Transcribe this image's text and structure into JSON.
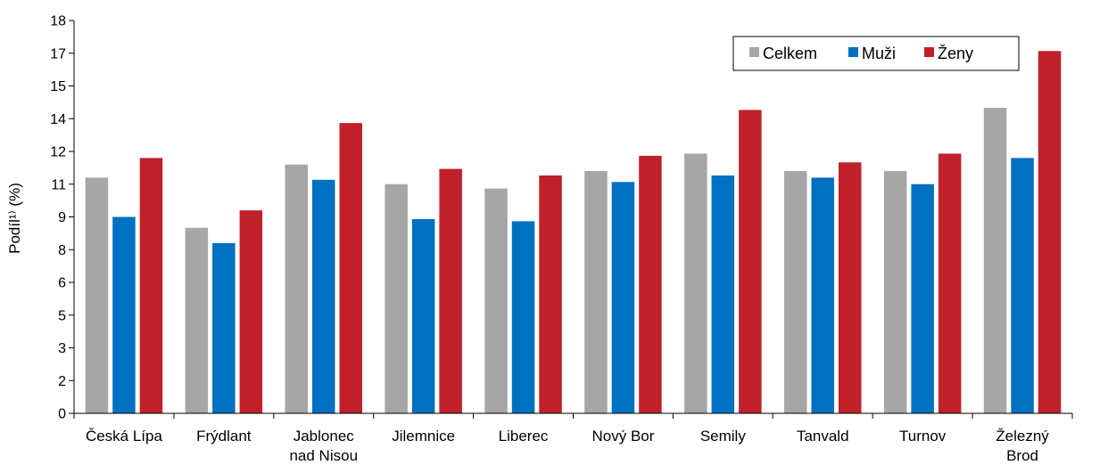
{
  "chart_data": {
    "type": "bar",
    "title": "",
    "ylabel": "Podíl¹⁾ (%)",
    "ylim": [
      0,
      18
    ],
    "y_ticks": [
      "0",
      "2",
      "3",
      "5",
      "6",
      "8",
      "9",
      "11",
      "12",
      "14",
      "15",
      "17",
      "18"
    ],
    "categories": [
      [
        "Česká Lípa"
      ],
      [
        "Frýdlant"
      ],
      [
        "Jablonec",
        "nad Nisou"
      ],
      [
        "Jilemnice"
      ],
      [
        "Liberec"
      ],
      [
        "Nový Bor"
      ],
      [
        "Semily"
      ],
      [
        "Tanvald"
      ],
      [
        "Turnov"
      ],
      [
        "Železný",
        "Brod"
      ]
    ],
    "series": [
      {
        "name": "Celkem",
        "color": "#a6a6a6",
        "values": [
          10.8,
          8.5,
          11.4,
          10.5,
          10.3,
          11.1,
          11.9,
          11.1,
          11.1,
          14.0
        ]
      },
      {
        "name": "Muži",
        "color": "#0070c0",
        "values": [
          9.0,
          7.8,
          10.7,
          8.9,
          8.8,
          10.6,
          10.9,
          10.8,
          10.5,
          11.7
        ]
      },
      {
        "name": "Ženy",
        "color": "#c0202a",
        "values": [
          11.7,
          9.3,
          13.3,
          11.2,
          10.9,
          11.8,
          13.9,
          11.5,
          11.9,
          16.6
        ]
      }
    ],
    "grid": false,
    "legend_position": "top-right"
  }
}
